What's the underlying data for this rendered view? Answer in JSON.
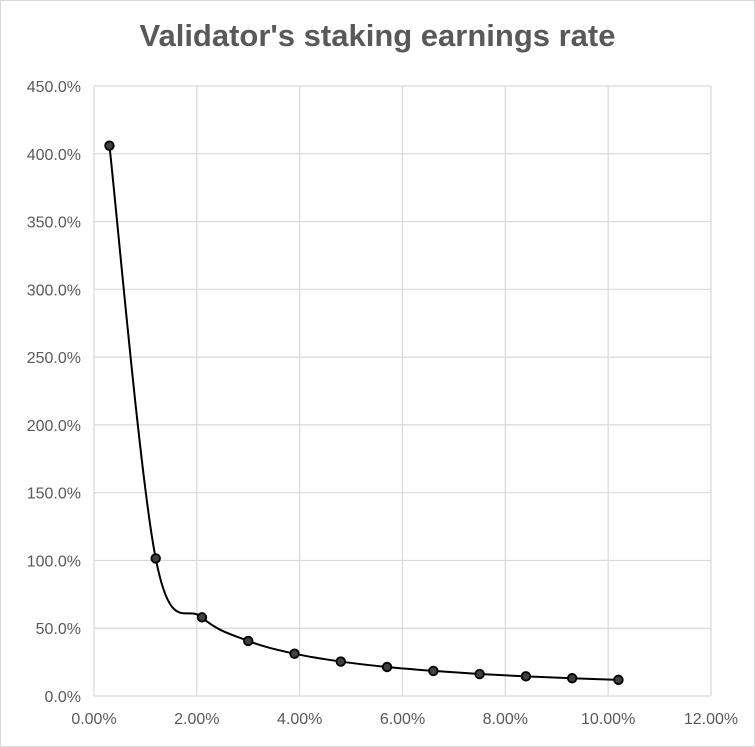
{
  "chart_data": {
    "type": "scatter",
    "title": "Validator's staking earnings rate",
    "xlabel": "",
    "ylabel": "",
    "xlim": [
      0,
      0.12
    ],
    "ylim": [
      0,
      4.5
    ],
    "grid": true,
    "line": "smooth",
    "marker_color": "#000000",
    "x_ticks": [
      "0.00%",
      "2.00%",
      "4.00%",
      "6.00%",
      "8.00%",
      "10.00%",
      "12.00%"
    ],
    "y_ticks": [
      "0.0%",
      "50.0%",
      "100.0%",
      "150.0%",
      "200.0%",
      "250.0%",
      "300.0%",
      "350.0%",
      "400.0%",
      "450.0%"
    ],
    "series": [
      {
        "x": [
          0.003,
          0.012,
          0.021,
          0.03,
          0.039,
          0.048,
          0.057,
          0.066,
          0.075,
          0.084,
          0.093,
          0.102
        ],
        "y": [
          4.06,
          1.015,
          0.58,
          0.406,
          0.312,
          0.254,
          0.214,
          0.185,
          0.162,
          0.145,
          0.131,
          0.119
        ]
      }
    ]
  }
}
